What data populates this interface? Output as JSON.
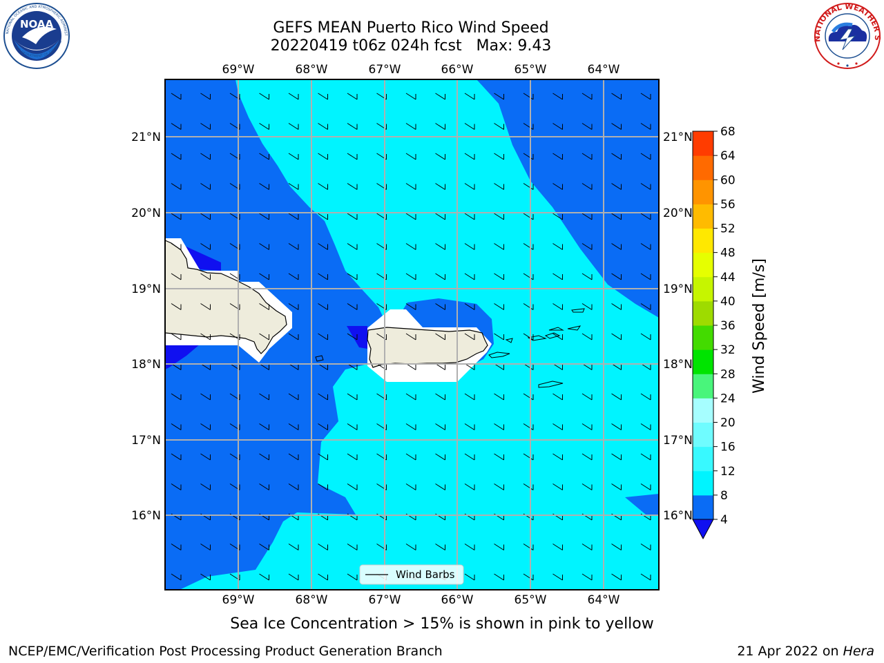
{
  "title": {
    "line1": "GEFS MEAN Puerto Rico Wind Speed",
    "line2": "20220419 t06z 024h fcst   Max: 9.43"
  },
  "caption": "Sea Ice Concentration > 15% is shown in pink to yellow",
  "footer": {
    "left": "NCEP/EMC/Verification Post Processing Product Generation Branch",
    "right_prefix": "21 Apr 2022 on ",
    "right_machine": "Hera"
  },
  "logos": {
    "noaa_text": "NOAA",
    "noaa_ring": "NATIONAL OCEANIC AND ATMOSPHERIC ADMINISTRATION",
    "noaa_ring_bottom": "U.S. DEPARTMENT OF COMMERCE",
    "nws_ring": "NATIONAL WEATHER SERVICE"
  },
  "map": {
    "lon_labels": [
      "69°W",
      "68°W",
      "67°W",
      "66°W",
      "65°W",
      "64°W"
    ],
    "lat_labels": [
      "21°N",
      "20°N",
      "19°N",
      "18°N",
      "17°N",
      "16°N"
    ],
    "legend_label": "Wind Barbs"
  },
  "colorbar": {
    "label": "Wind Speed [m/s]",
    "ticks": [
      "4",
      "8",
      "12",
      "16",
      "20",
      "24",
      "28",
      "32",
      "36",
      "40",
      "44",
      "48",
      "52",
      "56",
      "60",
      "64",
      "68"
    ],
    "colors": [
      "#0a6cf5",
      "#00f4ff",
      "#38f9ff",
      "#6ffcff",
      "#a6feff",
      "#49f57b",
      "#00e400",
      "#43db00",
      "#9edb00",
      "#c6f500",
      "#e6ff00",
      "#ffe800",
      "#ffbb00",
      "#ff9400",
      "#ff6a00",
      "#ff3c00",
      "#ff0d00"
    ],
    "extend_color": "#1010f0"
  },
  "colors": {
    "field_low": "#0a6cf5",
    "field_mid": "#00f4ff",
    "field_deep": "#1010f0",
    "land": "#eeecdc"
  }
}
